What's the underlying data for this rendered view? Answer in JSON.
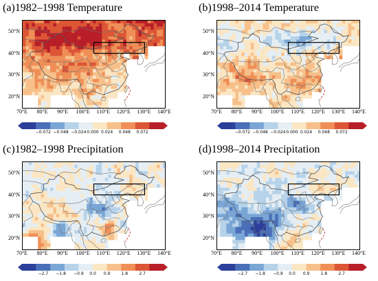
{
  "panels": [
    {
      "id": "a",
      "title": "(a)1982–1998 Temperature",
      "variable": "temperature",
      "period": "1982–1998"
    },
    {
      "id": "b",
      "title": "(b)1998–2014 Temperature",
      "variable": "temperature",
      "period": "1998–2014"
    },
    {
      "id": "c",
      "title": "(c)1982–1998 Precipitation",
      "variable": "precipitation",
      "period": "1982–1998"
    },
    {
      "id": "d",
      "title": "(d)1998–2014 Precipitation",
      "variable": "precipitation",
      "period": "1998–2014"
    }
  ],
  "axes": {
    "lon_labels": [
      "70°E",
      "80°E",
      "90°E",
      "100°E",
      "110°E",
      "120°E",
      "130°E",
      "140°E"
    ],
    "lat_labels": [
      "50°N",
      "40°N",
      "30°N",
      "20°N"
    ],
    "lon_range": [
      70,
      140
    ],
    "lat_range": [
      15,
      55
    ]
  },
  "study_region": {
    "lon_range": [
      105,
      130
    ],
    "lat_range": [
      40,
      45
    ]
  },
  "colorbars": {
    "temperature": {
      "ticks": [
        "−0.072",
        "−0.048",
        "−0.024",
        "0.000",
        "0.024",
        "0.048",
        "0.072"
      ],
      "colors": [
        "#2c3f9a",
        "#4a6fb8",
        "#7aa6d6",
        "#b6d3ea",
        "#e5eef4",
        "#fbe6c4",
        "#f7c08a",
        "#ef8f57",
        "#dc5636",
        "#b81f28"
      ]
    },
    "precipitation": {
      "ticks": [
        "−2.7",
        "−1.8",
        "−0.9",
        "0.0",
        "0.9",
        "1.8",
        "2.7"
      ],
      "colors": [
        "#2c3f9a",
        "#4a6fb8",
        "#7aa6d6",
        "#b6d3ea",
        "#e5eef4",
        "#fbe6c4",
        "#f7c08a",
        "#ef8f57",
        "#dc5636",
        "#b81f28"
      ]
    }
  }
}
